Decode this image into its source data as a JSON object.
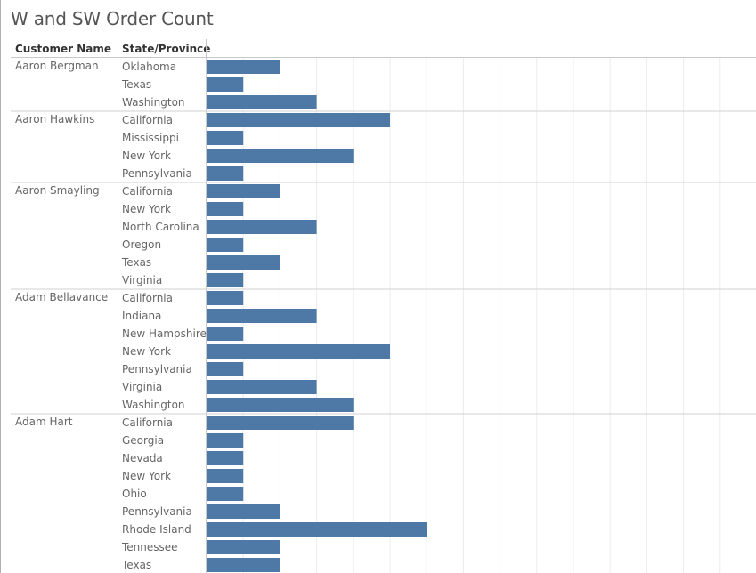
{
  "title": "W and SW Order Count",
  "headers": {
    "customer": "Customer Name",
    "state": "State/Province"
  },
  "colors": {
    "bar": "#4e79a7",
    "grid": "#ececec",
    "separator": "#d0d0d0",
    "text": "#666666"
  },
  "chart_data": {
    "type": "bar",
    "orientation": "horizontal",
    "title": "W and SW Order Count",
    "row_headers": [
      "Customer Name",
      "State/Province"
    ],
    "xlim": [
      0,
      14
    ],
    "grid": true,
    "groups": [
      {
        "customer": "Aaron Bergman",
        "rows": [
          {
            "state": "Oklahoma",
            "value": 2
          },
          {
            "state": "Texas",
            "value": 1
          },
          {
            "state": "Washington",
            "value": 3
          }
        ]
      },
      {
        "customer": "Aaron Hawkins",
        "rows": [
          {
            "state": "California",
            "value": 5
          },
          {
            "state": "Mississippi",
            "value": 1
          },
          {
            "state": "New York",
            "value": 4
          },
          {
            "state": "Pennsylvania",
            "value": 1
          }
        ]
      },
      {
        "customer": "Aaron Smayling",
        "rows": [
          {
            "state": "California",
            "value": 2
          },
          {
            "state": "New York",
            "value": 1
          },
          {
            "state": "North Carolina",
            "value": 3
          },
          {
            "state": "Oregon",
            "value": 1
          },
          {
            "state": "Texas",
            "value": 2
          },
          {
            "state": "Virginia",
            "value": 1
          }
        ]
      },
      {
        "customer": "Adam Bellavance",
        "rows": [
          {
            "state": "California",
            "value": 1
          },
          {
            "state": "Indiana",
            "value": 3
          },
          {
            "state": "New Hampshire",
            "value": 1
          },
          {
            "state": "New York",
            "value": 5
          },
          {
            "state": "Pennsylvania",
            "value": 1
          },
          {
            "state": "Virginia",
            "value": 3
          },
          {
            "state": "Washington",
            "value": 4
          }
        ]
      },
      {
        "customer": "Adam Hart",
        "rows": [
          {
            "state": "California",
            "value": 4
          },
          {
            "state": "Georgia",
            "value": 1
          },
          {
            "state": "Nevada",
            "value": 1
          },
          {
            "state": "New York",
            "value": 1
          },
          {
            "state": "Ohio",
            "value": 1
          },
          {
            "state": "Pennsylvania",
            "value": 2
          },
          {
            "state": "Rhode Island",
            "value": 6
          },
          {
            "state": "Tennessee",
            "value": 2
          },
          {
            "state": "Texas",
            "value": 2
          }
        ]
      }
    ]
  }
}
